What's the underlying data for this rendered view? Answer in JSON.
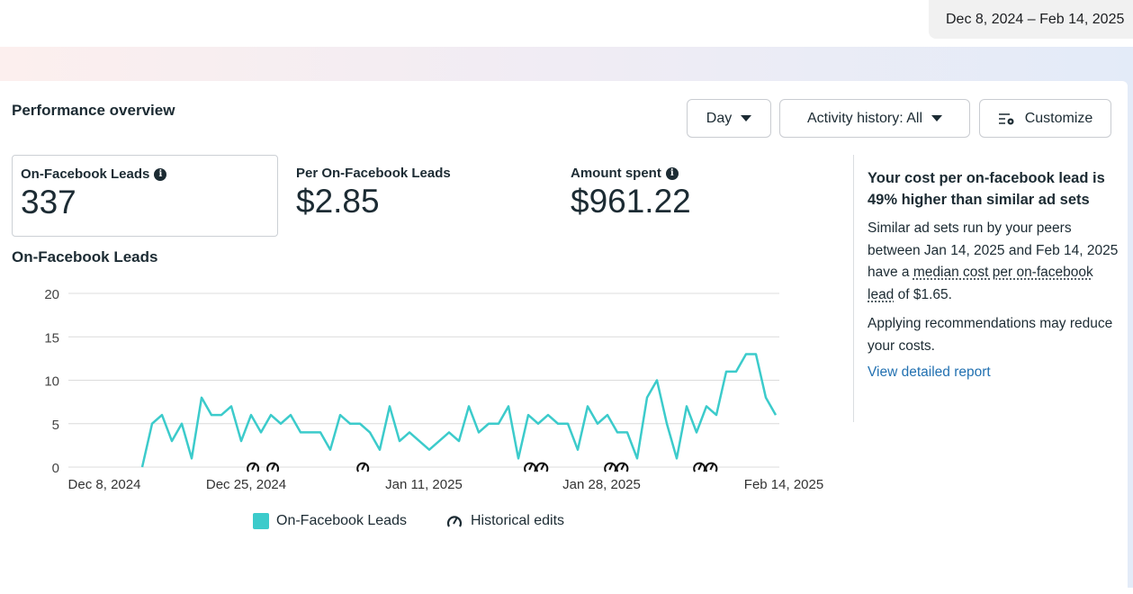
{
  "header": {
    "date_range": "Dec 8, 2024 – Feb 14, 2025"
  },
  "panel": {
    "title": "Performance overview",
    "buttons": {
      "day": "Day",
      "activity": "Activity history: All",
      "customize": "Customize"
    },
    "metrics": [
      {
        "label": "On-Facebook Leads",
        "value": "337"
      },
      {
        "label": "Per On-Facebook Leads",
        "value": "$2.85"
      },
      {
        "label": "Amount spent",
        "value": "$961.22"
      }
    ]
  },
  "insight": {
    "heading": "Your cost per on-facebook lead is 49% higher than similar ad sets",
    "p1_before": "Similar ad sets run by your peers between Jan 14, 2025 and Feb 14, 2025 have a ",
    "p1_link": "median cost per on-facebook lead",
    "p1_after": " of $1.65.",
    "p2": "Applying recommendations may reduce your costs.",
    "link": "View detailed report"
  },
  "colors": {
    "series": "#3ccbcb"
  },
  "chart_data": {
    "type": "line",
    "title": "On-Facebook Leads",
    "ylim": [
      0,
      20
    ],
    "y_ticks": [
      "0",
      "5",
      "10",
      "15",
      "20"
    ],
    "x_ticks": [
      "Dec 8, 2024",
      "Dec 25, 2024",
      "Jan 11, 2025",
      "Jan 28, 2025",
      "Feb 14, 2025"
    ],
    "series": [
      {
        "name": "On-Facebook Leads",
        "values": [
          0,
          5,
          6,
          3,
          5,
          1,
          8,
          6,
          6,
          7,
          3,
          6,
          4,
          6,
          5,
          6,
          4,
          4,
          4,
          2,
          6,
          5,
          5,
          4,
          2,
          7,
          3,
          4,
          3,
          2,
          3,
          4,
          3,
          7,
          4,
          5,
          5,
          7,
          1,
          6,
          5,
          6,
          5,
          5,
          2,
          7,
          5,
          6,
          4,
          4,
          1,
          8,
          10,
          5,
          1,
          7,
          4,
          7,
          6,
          11,
          11,
          13,
          13,
          8,
          6
        ]
      }
    ],
    "historical_edit_indices": [
      11.1,
      13.1,
      22.2,
      39.1,
      40.3,
      47.2,
      48.4,
      56.2,
      57.4
    ],
    "legend": [
      "On-Facebook Leads",
      "Historical edits"
    ],
    "legend_position": "bottom"
  }
}
